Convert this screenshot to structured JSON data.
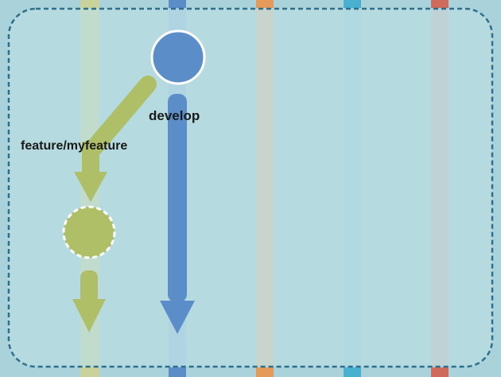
{
  "diagram": {
    "branch_labels": {
      "develop": "develop",
      "feature": "feature/myfeature"
    },
    "colors": {
      "background": "#a9d2da",
      "panel_fill": "#b9dce2",
      "panel_border": "#2e6f8c",
      "feature_green": "#aebf68",
      "develop_blue": "#5b8ec8",
      "master_lane": "#d3cd9f",
      "release_lane": "#e49a58",
      "hotfix_lane": "#4ab0cf",
      "support_lane": "#d06a5c",
      "ghost_lane_blue": "#9ec3df"
    },
    "nodes": [
      {
        "id": "develop-commit",
        "branch": "develop",
        "style": "solid"
      },
      {
        "id": "feature-commit",
        "branch": "feature",
        "style": "dashed"
      }
    ]
  }
}
